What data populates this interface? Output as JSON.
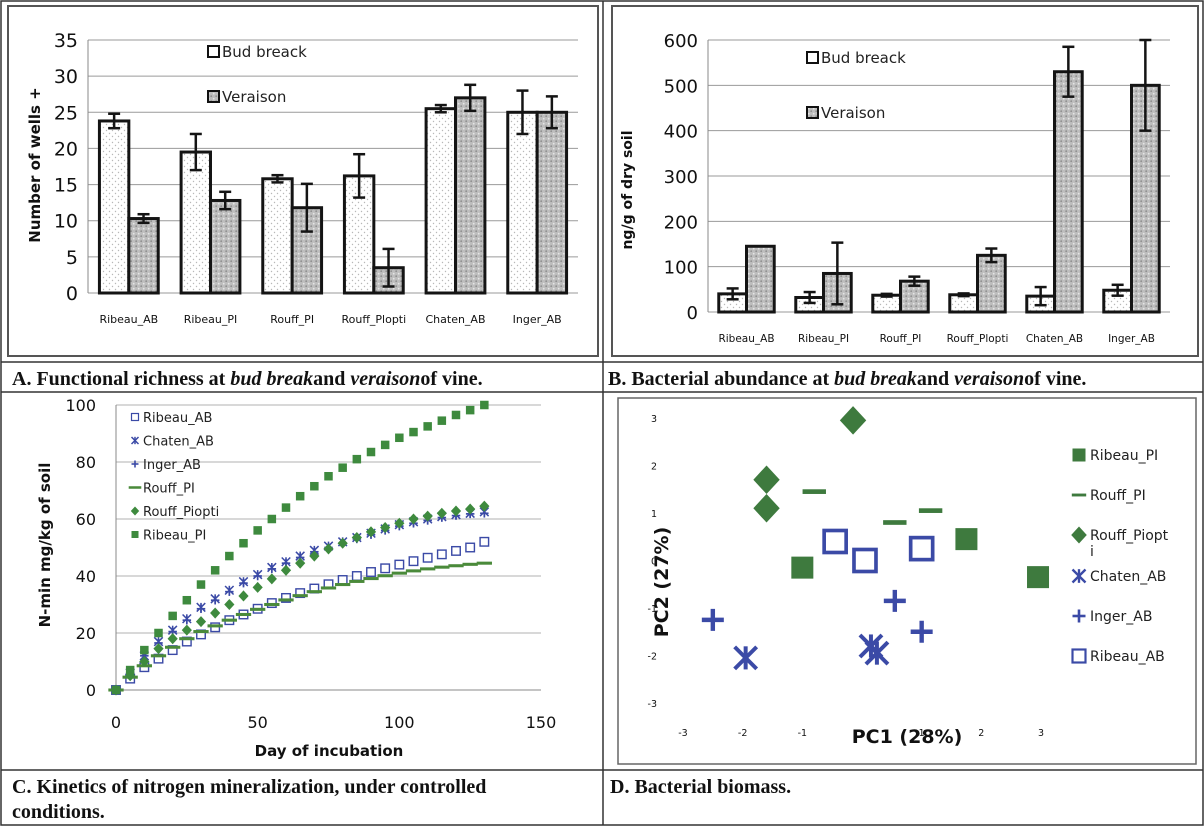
{
  "chart_data": [
    {
      "id": "A",
      "type": "bar",
      "caption": {
        "prefix": "A. Functional richness at ",
        "em1": "bud break",
        "mid": "and ",
        "em2": "veraison",
        "suffix": "of vine."
      },
      "ylabel": "Number of wells +",
      "xlabel": "",
      "ylim": [
        0,
        35
      ],
      "yticks": [
        0,
        5,
        10,
        15,
        20,
        25,
        30,
        35
      ],
      "grid": true,
      "legend_position": "top-center",
      "categories": [
        "Ribeau_AB",
        "Ribeau_PI",
        "Rouff_PI",
        "Rouff_Plopti",
        "Chaten_AB",
        "Inger_AB"
      ],
      "series": [
        {
          "name": "Bud breack",
          "values": [
            23.8,
            19.5,
            15.8,
            16.2,
            25.5,
            25.0
          ],
          "errors": [
            1.0,
            2.5,
            0.5,
            3.0,
            0.5,
            3.0
          ],
          "fill": "#ffffff"
        },
        {
          "name": "Veraison",
          "values": [
            10.3,
            12.8,
            11.8,
            3.5,
            27.0,
            25.0
          ],
          "errors": [
            0.6,
            1.2,
            3.3,
            2.6,
            1.8,
            2.2
          ],
          "fill": "#c4c4c4"
        }
      ]
    },
    {
      "id": "B",
      "type": "bar",
      "caption": {
        "prefix": "B. Bacterial abundance at ",
        "em1": "bud break",
        "mid": "and ",
        "em2": "veraison",
        "suffix": "of vine."
      },
      "ylabel": "ng/g of dry soil",
      "xlabel": "",
      "ylim": [
        0,
        600
      ],
      "yticks": [
        0,
        100,
        200,
        300,
        400,
        500,
        600
      ],
      "grid": true,
      "legend_position": "top-left",
      "categories": [
        "Ribeau_AB",
        "Ribeau_PI",
        "Rouff_PI",
        "Rouff_Plopti",
        "Chaten_AB",
        "Inger_AB"
      ],
      "series": [
        {
          "name": "Bud breack",
          "values": [
            40,
            32,
            37,
            38,
            35,
            48
          ],
          "errors": [
            12,
            12,
            3,
            3,
            20,
            12
          ],
          "fill": "#ffffff"
        },
        {
          "name": "Veraison",
          "values": [
            145,
            85,
            68,
            125,
            530,
            500
          ],
          "errors": [
            0,
            68,
            10,
            15,
            55,
            100
          ],
          "fill": "#c4c4c4"
        }
      ]
    },
    {
      "id": "C",
      "type": "scatter",
      "caption": {
        "line1": "C. Kinetics of nitrogen mineralization, under controlled",
        "line2": "conditions."
      },
      "xlabel": "Day of incubation",
      "ylabel": "N-min mg/kg of soil",
      "xlim": [
        0,
        150
      ],
      "ylim": [
        0,
        100
      ],
      "xticks": [
        0,
        50,
        100,
        150
      ],
      "yticks": [
        0,
        20,
        40,
        60,
        80,
        100
      ],
      "grid": true,
      "legend_position": "top-left",
      "x": [
        0,
        5,
        10,
        15,
        20,
        25,
        30,
        35,
        40,
        45,
        50,
        55,
        60,
        65,
        70,
        75,
        80,
        85,
        90,
        95,
        100,
        105,
        110,
        115,
        120,
        125,
        130
      ],
      "series": [
        {
          "name": "Ribeau_AB",
          "marker": "open-square",
          "color": "#3b4aa6",
          "y": [
            0,
            4,
            8,
            11,
            14,
            17,
            19.5,
            22,
            24.5,
            26.5,
            28.5,
            30.5,
            32.3,
            34,
            35.6,
            37.1,
            38.6,
            40,
            41.4,
            42.7,
            44,
            45.2,
            46.4,
            47.6,
            48.8,
            50,
            52
          ]
        },
        {
          "name": "Chaten_AB",
          "marker": "star",
          "color": "#3b4aa6",
          "y": [
            0,
            6,
            12,
            17,
            21,
            25,
            29,
            32,
            35,
            38,
            40.5,
            43,
            45,
            47,
            49,
            50.5,
            52,
            53.5,
            55,
            56.5,
            58,
            59,
            60,
            60.8,
            61.5,
            62,
            62.5
          ]
        },
        {
          "name": "Inger_AB",
          "marker": "plus",
          "color": "#3b4aa6",
          "y": [
            0,
            6,
            12,
            16.5,
            20.5,
            24.5,
            28.5,
            31.5,
            34.5,
            37.5,
            40,
            42.5,
            44.5,
            46.5,
            48.5,
            50,
            51.5,
            53,
            54.5,
            56,
            57.5,
            58.5,
            59.5,
            60.5,
            61.2,
            61.8,
            62
          ]
        },
        {
          "name": "Rouff_PI",
          "marker": "line",
          "color": "#4a8a3a",
          "y": [
            0,
            4.5,
            8.5,
            12,
            15,
            18,
            20.5,
            22.5,
            24.5,
            26.5,
            28.3,
            30,
            31.6,
            33.1,
            34.5,
            35.8,
            37,
            38.1,
            39.1,
            40.1,
            41,
            41.8,
            42.5,
            43.1,
            43.6,
            44.1,
            44.5
          ]
        },
        {
          "name": "Rouff_Piopti",
          "marker": "diamond",
          "color": "#3e8a3e",
          "y": [
            0,
            5,
            10,
            14.5,
            18,
            21,
            24,
            27,
            30,
            33,
            36,
            39,
            42,
            44.5,
            47,
            49.5,
            51.5,
            53.5,
            55.5,
            57,
            58.5,
            60,
            61,
            62,
            62.8,
            63.5,
            64.5
          ]
        },
        {
          "name": "Ribeau_PI",
          "marker": "square",
          "color": "#3e8a3e",
          "y": [
            0,
            7,
            14,
            20,
            26,
            31.5,
            37,
            42,
            47,
            51.5,
            56,
            60,
            64,
            68,
            71.5,
            75,
            78,
            81,
            83.5,
            86,
            88.5,
            90.5,
            92.5,
            94.5,
            96.5,
            98.2,
            100
          ]
        }
      ]
    },
    {
      "id": "D",
      "type": "scatter",
      "caption": {
        "line1": "D. Bacterial biomass."
      },
      "xlabel": "PC1 (28%)",
      "ylabel": "PC2 (27%)",
      "xlim": [
        -3,
        3
      ],
      "ylim": [
        -3,
        3
      ],
      "xticks": [
        -3,
        -2,
        -1,
        0,
        1,
        2,
        3
      ],
      "yticks": [
        -3,
        -2,
        -1,
        0,
        1,
        2,
        3
      ],
      "grid": false,
      "legend_position": "right",
      "series": [
        {
          "name": "Ribeau_PI",
          "marker": "square",
          "color": "#3e7a3e",
          "points": [
            [
              -1.0,
              -0.15
            ],
            [
              1.75,
              0.45
            ],
            [
              2.95,
              -0.35
            ]
          ]
        },
        {
          "name": "Rouff_PI",
          "marker": "line",
          "color": "#3e7a3e",
          "points": [
            [
              -0.8,
              1.45
            ],
            [
              0.55,
              0.8
            ],
            [
              1.15,
              1.05
            ]
          ]
        },
        {
          "name": "Rouff_Piopti",
          "marker": "diamond",
          "color": "#3e7a3e",
          "points": [
            [
              -1.6,
              1.7
            ],
            [
              -1.6,
              1.1
            ],
            [
              -0.15,
              2.95
            ]
          ]
        },
        {
          "name": "Chaten_AB",
          "marker": "star",
          "color": "#3b4aa6",
          "points": [
            [
              -1.95,
              -2.05
            ],
            [
              0.15,
              -1.8
            ],
            [
              0.25,
              -1.95
            ]
          ]
        },
        {
          "name": "Inger_AB",
          "marker": "plus",
          "color": "#3b4aa6",
          "points": [
            [
              -2.5,
              -1.25
            ],
            [
              0.55,
              -0.85
            ],
            [
              1.0,
              -1.5
            ]
          ]
        },
        {
          "name": "Ribeau_AB",
          "marker": "open-square",
          "color": "#3b4aa6",
          "points": [
            [
              -0.45,
              0.4
            ],
            [
              0.05,
              0.0
            ],
            [
              1.0,
              0.25
            ]
          ]
        }
      ]
    }
  ]
}
